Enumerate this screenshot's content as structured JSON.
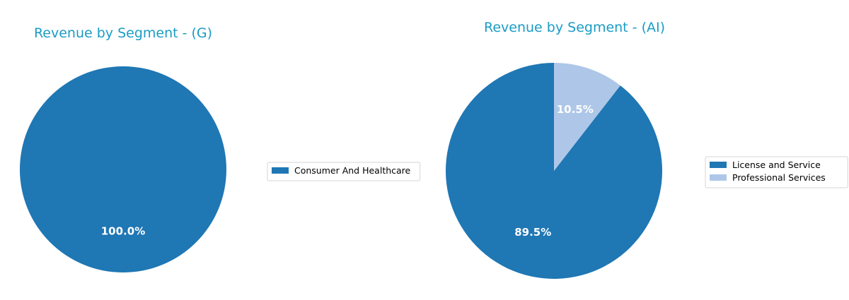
{
  "chart_data": [
    {
      "type": "pie",
      "title": "Revenue by Segment - (G)",
      "categories": [
        "Consumer And Healthcare"
      ],
      "values": [
        100.0
      ],
      "labels": [
        "100.0%"
      ],
      "colors": [
        "#1f77b4"
      ],
      "legend": "right"
    },
    {
      "type": "pie",
      "title": "Revenue by Segment - (AI)",
      "categories": [
        "License and Service",
        "Professional Services"
      ],
      "values": [
        89.5,
        10.5
      ],
      "labels": [
        "89.5%",
        "10.5%"
      ],
      "colors": [
        "#1f77b4",
        "#aec7e8"
      ],
      "legend": "right"
    }
  ]
}
